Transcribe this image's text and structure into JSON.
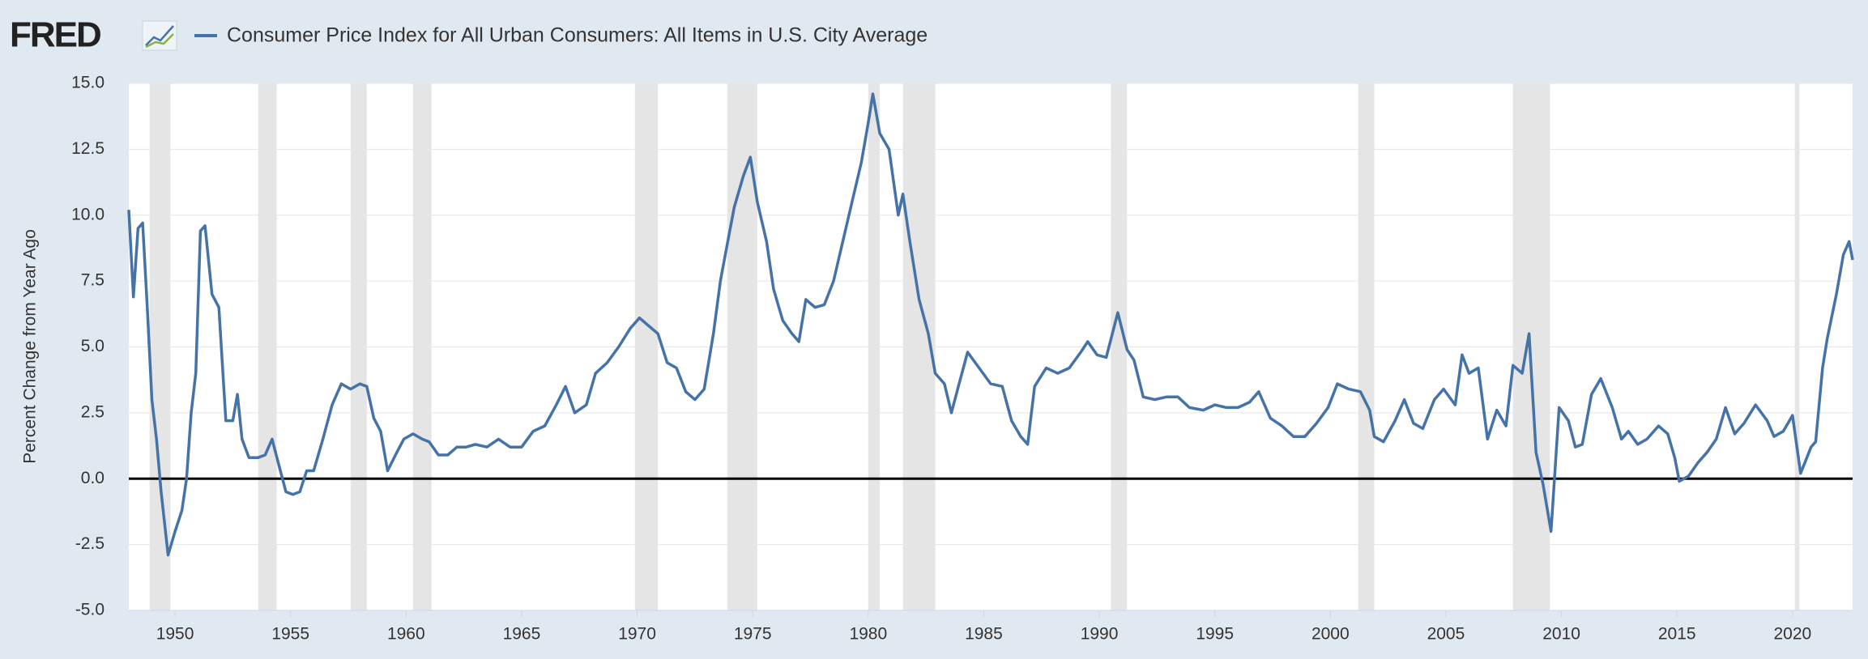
{
  "brand": "FRED",
  "chart_data": {
    "type": "line",
    "ylabel": "Percent Change from Year Ago",
    "xlim": [
      1948.0,
      2022.6
    ],
    "ylim": [
      -5,
      15
    ],
    "xticks": [
      1950,
      1955,
      1960,
      1965,
      1970,
      1975,
      1980,
      1985,
      1990,
      1995,
      2000,
      2005,
      2010,
      2015,
      2020
    ],
    "yticks": [
      {
        "value": 15,
        "label": "15.0"
      },
      {
        "value": 12.5,
        "label": "12.5"
      },
      {
        "value": 10,
        "label": "10.0"
      },
      {
        "value": 7.5,
        "label": "7.5"
      },
      {
        "value": 5,
        "label": "5.0"
      },
      {
        "value": 2.5,
        "label": "2.5"
      },
      {
        "value": 0,
        "label": "0.0"
      },
      {
        "value": -2.5,
        "label": "-2.5"
      },
      {
        "value": -5,
        "label": "-5.0"
      }
    ],
    "grid": true,
    "recessions": [
      [
        1948.9,
        1949.8
      ],
      [
        1953.6,
        1954.4
      ],
      [
        1957.6,
        1958.3
      ],
      [
        1960.3,
        1961.1
      ],
      [
        1969.9,
        1970.9
      ],
      [
        1973.9,
        1975.2
      ],
      [
        1980.0,
        1980.5
      ],
      [
        1981.5,
        1982.9
      ],
      [
        1990.5,
        1991.2
      ],
      [
        2001.2,
        2001.9
      ],
      [
        2007.9,
        2009.5
      ],
      [
        2020.1,
        2020.3
      ]
    ],
    "x": [
      1948.0,
      1948.2,
      1948.4,
      1948.6,
      1948.8,
      1949.0,
      1949.2,
      1949.4,
      1949.7,
      1950.0,
      1950.3,
      1950.5,
      1950.7,
      1950.9,
      1951.1,
      1951.3,
      1951.6,
      1951.9,
      1952.2,
      1952.5,
      1952.7,
      1952.9,
      1953.2,
      1953.6,
      1953.9,
      1954.2,
      1954.5,
      1954.8,
      1955.1,
      1955.4,
      1955.7,
      1956.0,
      1956.4,
      1956.8,
      1957.2,
      1957.6,
      1958.0,
      1958.3,
      1958.6,
      1958.9,
      1959.2,
      1959.6,
      1959.9,
      1960.3,
      1960.7,
      1961.0,
      1961.4,
      1961.8,
      1962.2,
      1962.6,
      1963.0,
      1963.5,
      1964.0,
      1964.5,
      1965.0,
      1965.5,
      1966.0,
      1966.5,
      1966.9,
      1967.3,
      1967.8,
      1968.2,
      1968.7,
      1969.2,
      1969.7,
      1970.1,
      1970.5,
      1970.9,
      1971.3,
      1971.7,
      1972.1,
      1972.5,
      1972.9,
      1973.3,
      1973.6,
      1973.9,
      1974.2,
      1974.6,
      1974.9,
      1975.2,
      1975.6,
      1975.9,
      1976.3,
      1976.7,
      1977.0,
      1977.3,
      1977.7,
      1978.1,
      1978.5,
      1978.9,
      1979.3,
      1979.7,
      1980.0,
      1980.2,
      1980.5,
      1980.9,
      1981.3,
      1981.5,
      1981.8,
      1982.2,
      1982.6,
      1982.9,
      1983.3,
      1983.6,
      1983.9,
      1984.3,
      1984.8,
      1985.3,
      1985.8,
      1986.2,
      1986.6,
      1986.9,
      1987.2,
      1987.7,
      1988.2,
      1988.7,
      1989.2,
      1989.5,
      1989.9,
      1990.3,
      1990.8,
      1991.2,
      1991.5,
      1991.9,
      1992.4,
      1992.9,
      1993.4,
      1993.9,
      1994.5,
      1995.0,
      1995.5,
      1996.0,
      1996.5,
      1996.9,
      1997.4,
      1997.9,
      1998.4,
      1998.9,
      1999.4,
      1999.9,
      2000.3,
      2000.8,
      2001.3,
      2001.7,
      2001.9,
      2002.3,
      2002.8,
      2003.2,
      2003.6,
      2004.0,
      2004.5,
      2004.9,
      2005.4,
      2005.7,
      2006.0,
      2006.4,
      2006.8,
      2007.2,
      2007.6,
      2007.9,
      2008.3,
      2008.6,
      2008.9,
      2009.2,
      2009.55,
      2009.9,
      2010.3,
      2010.6,
      2010.9,
      2011.3,
      2011.7,
      2012.2,
      2012.6,
      2012.9,
      2013.3,
      2013.7,
      2014.2,
      2014.6,
      2014.9,
      2015.1,
      2015.5,
      2015.9,
      2016.3,
      2016.7,
      2017.1,
      2017.5,
      2017.9,
      2018.4,
      2018.9,
      2019.2,
      2019.6,
      2020.0,
      2020.35,
      2020.8,
      2021.0,
      2021.3,
      2021.5,
      2021.9,
      2022.2,
      2022.45,
      2022.6
    ],
    "series": [
      {
        "name": "Consumer Price Index for All Urban Consumers: All Items in U.S. City Average",
        "color": "#4572a7",
        "values": [
          10.2,
          6.9,
          9.5,
          9.7,
          6.5,
          3.0,
          1.5,
          -0.5,
          -2.9,
          -2.0,
          -1.2,
          0.0,
          2.5,
          4.0,
          9.4,
          9.6,
          7.0,
          6.5,
          2.2,
          2.2,
          3.2,
          1.5,
          0.8,
          0.8,
          0.9,
          1.5,
          0.5,
          -0.5,
          -0.6,
          -0.5,
          0.3,
          0.3,
          1.5,
          2.8,
          3.6,
          3.4,
          3.6,
          3.5,
          2.3,
          1.8,
          0.3,
          1.0,
          1.5,
          1.7,
          1.5,
          1.4,
          0.9,
          0.9,
          1.2,
          1.2,
          1.3,
          1.2,
          1.5,
          1.2,
          1.2,
          1.8,
          2.0,
          2.8,
          3.5,
          2.5,
          2.8,
          4.0,
          4.4,
          5.0,
          5.7,
          6.1,
          5.8,
          5.5,
          4.4,
          4.2,
          3.3,
          3.0,
          3.4,
          5.5,
          7.5,
          8.9,
          10.3,
          11.5,
          12.2,
          10.5,
          9.0,
          7.2,
          6.0,
          5.5,
          5.2,
          6.8,
          6.5,
          6.6,
          7.5,
          9.0,
          10.5,
          12.0,
          13.5,
          14.6,
          13.1,
          12.5,
          10.0,
          10.8,
          9.0,
          6.8,
          5.5,
          4.0,
          3.6,
          2.5,
          3.5,
          4.8,
          4.2,
          3.6,
          3.5,
          2.2,
          1.6,
          1.3,
          3.5,
          4.2,
          4.0,
          4.2,
          4.8,
          5.2,
          4.7,
          4.6,
          6.3,
          4.9,
          4.5,
          3.1,
          3.0,
          3.1,
          3.1,
          2.7,
          2.6,
          2.8,
          2.7,
          2.7,
          2.9,
          3.3,
          2.3,
          2.0,
          1.6,
          1.6,
          2.1,
          2.7,
          3.6,
          3.4,
          3.3,
          2.6,
          1.6,
          1.4,
          2.2,
          3.0,
          2.1,
          1.9,
          3.0,
          3.4,
          2.8,
          4.7,
          4.0,
          4.2,
          1.5,
          2.6,
          2.0,
          4.3,
          4.0,
          5.5,
          1.0,
          -0.2,
          -2.0,
          2.7,
          2.2,
          1.2,
          1.3,
          3.2,
          3.8,
          2.7,
          1.5,
          1.8,
          1.3,
          1.5,
          2.0,
          1.7,
          0.8,
          -0.1,
          0.1,
          0.6,
          1.0,
          1.5,
          2.7,
          1.7,
          2.1,
          2.8,
          2.2,
          1.6,
          1.8,
          2.4,
          0.2,
          1.2,
          1.4,
          4.2,
          5.3,
          7.0,
          8.5,
          9.0,
          8.3
        ]
      }
    ]
  }
}
